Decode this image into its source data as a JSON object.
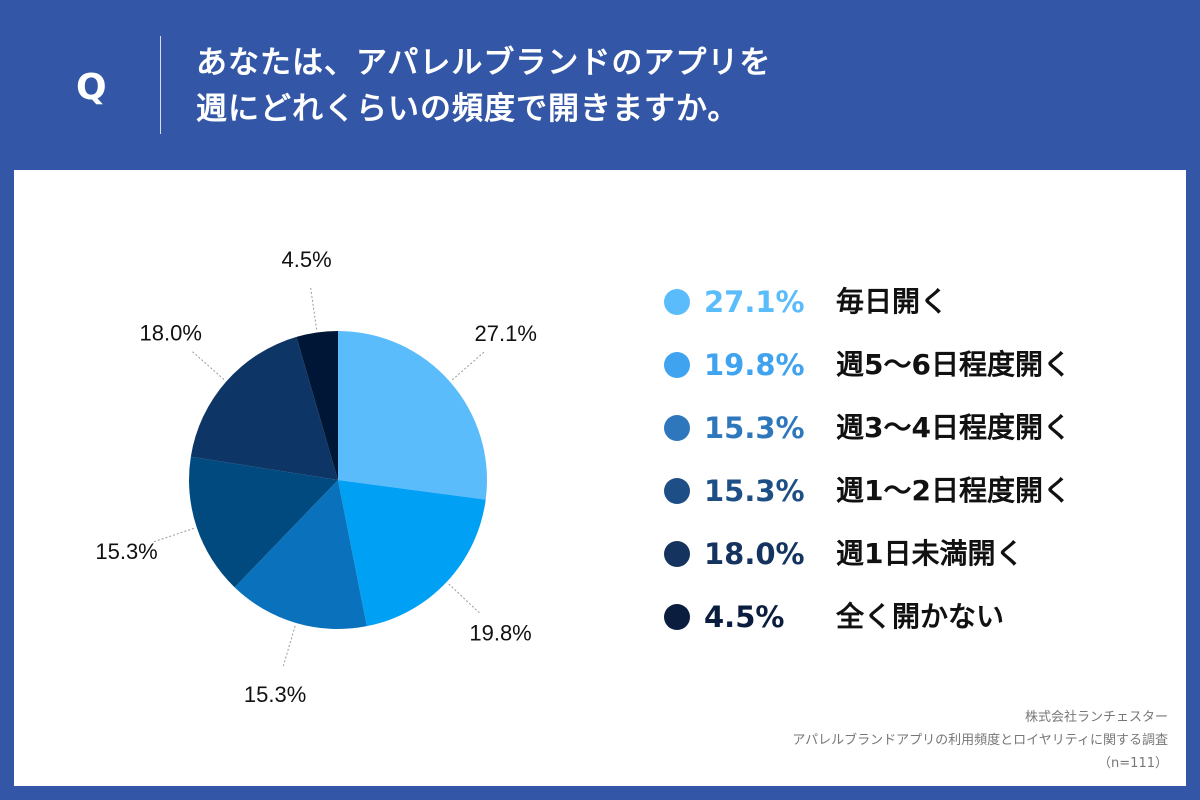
{
  "header": {
    "q_mark": "Q",
    "question_line1": "あなたは、アパレルブランドのアプリを",
    "question_line2": "週にどれくらいの頻度で開きますか。"
  },
  "chart_data": {
    "type": "pie",
    "categories": [
      "毎日開く",
      "週5〜6日程度開く",
      "週3〜4日程度開く",
      "週1〜2日程度開く",
      "週1日未満開く",
      "全く開かない"
    ],
    "values": [
      27.1,
      19.8,
      15.3,
      15.3,
      18.0,
      4.5
    ],
    "labels": [
      "27.1%",
      "19.8%",
      "15.3%",
      "15.3%",
      "18.0%",
      "4.5%"
    ],
    "colors": [
      "#5bbcfc",
      "#00a0f5",
      "#0a72bd",
      "#004a80",
      "#0d3566",
      "#001636"
    ],
    "legend_text_colors": [
      "#5bbcfc",
      "#3fa3ef",
      "#2f77bd",
      "#1d4f86",
      "#15335f",
      "#0b1d3e"
    ],
    "start_angle": "12 o'clock",
    "direction": "clockwise",
    "legend_placement": "right"
  },
  "source": {
    "line1": "株式会社ランチェスター",
    "line2": "アパレルブランドアプリの利用頻度とロイヤリティに関する調査",
    "line3": "（n=111）"
  }
}
